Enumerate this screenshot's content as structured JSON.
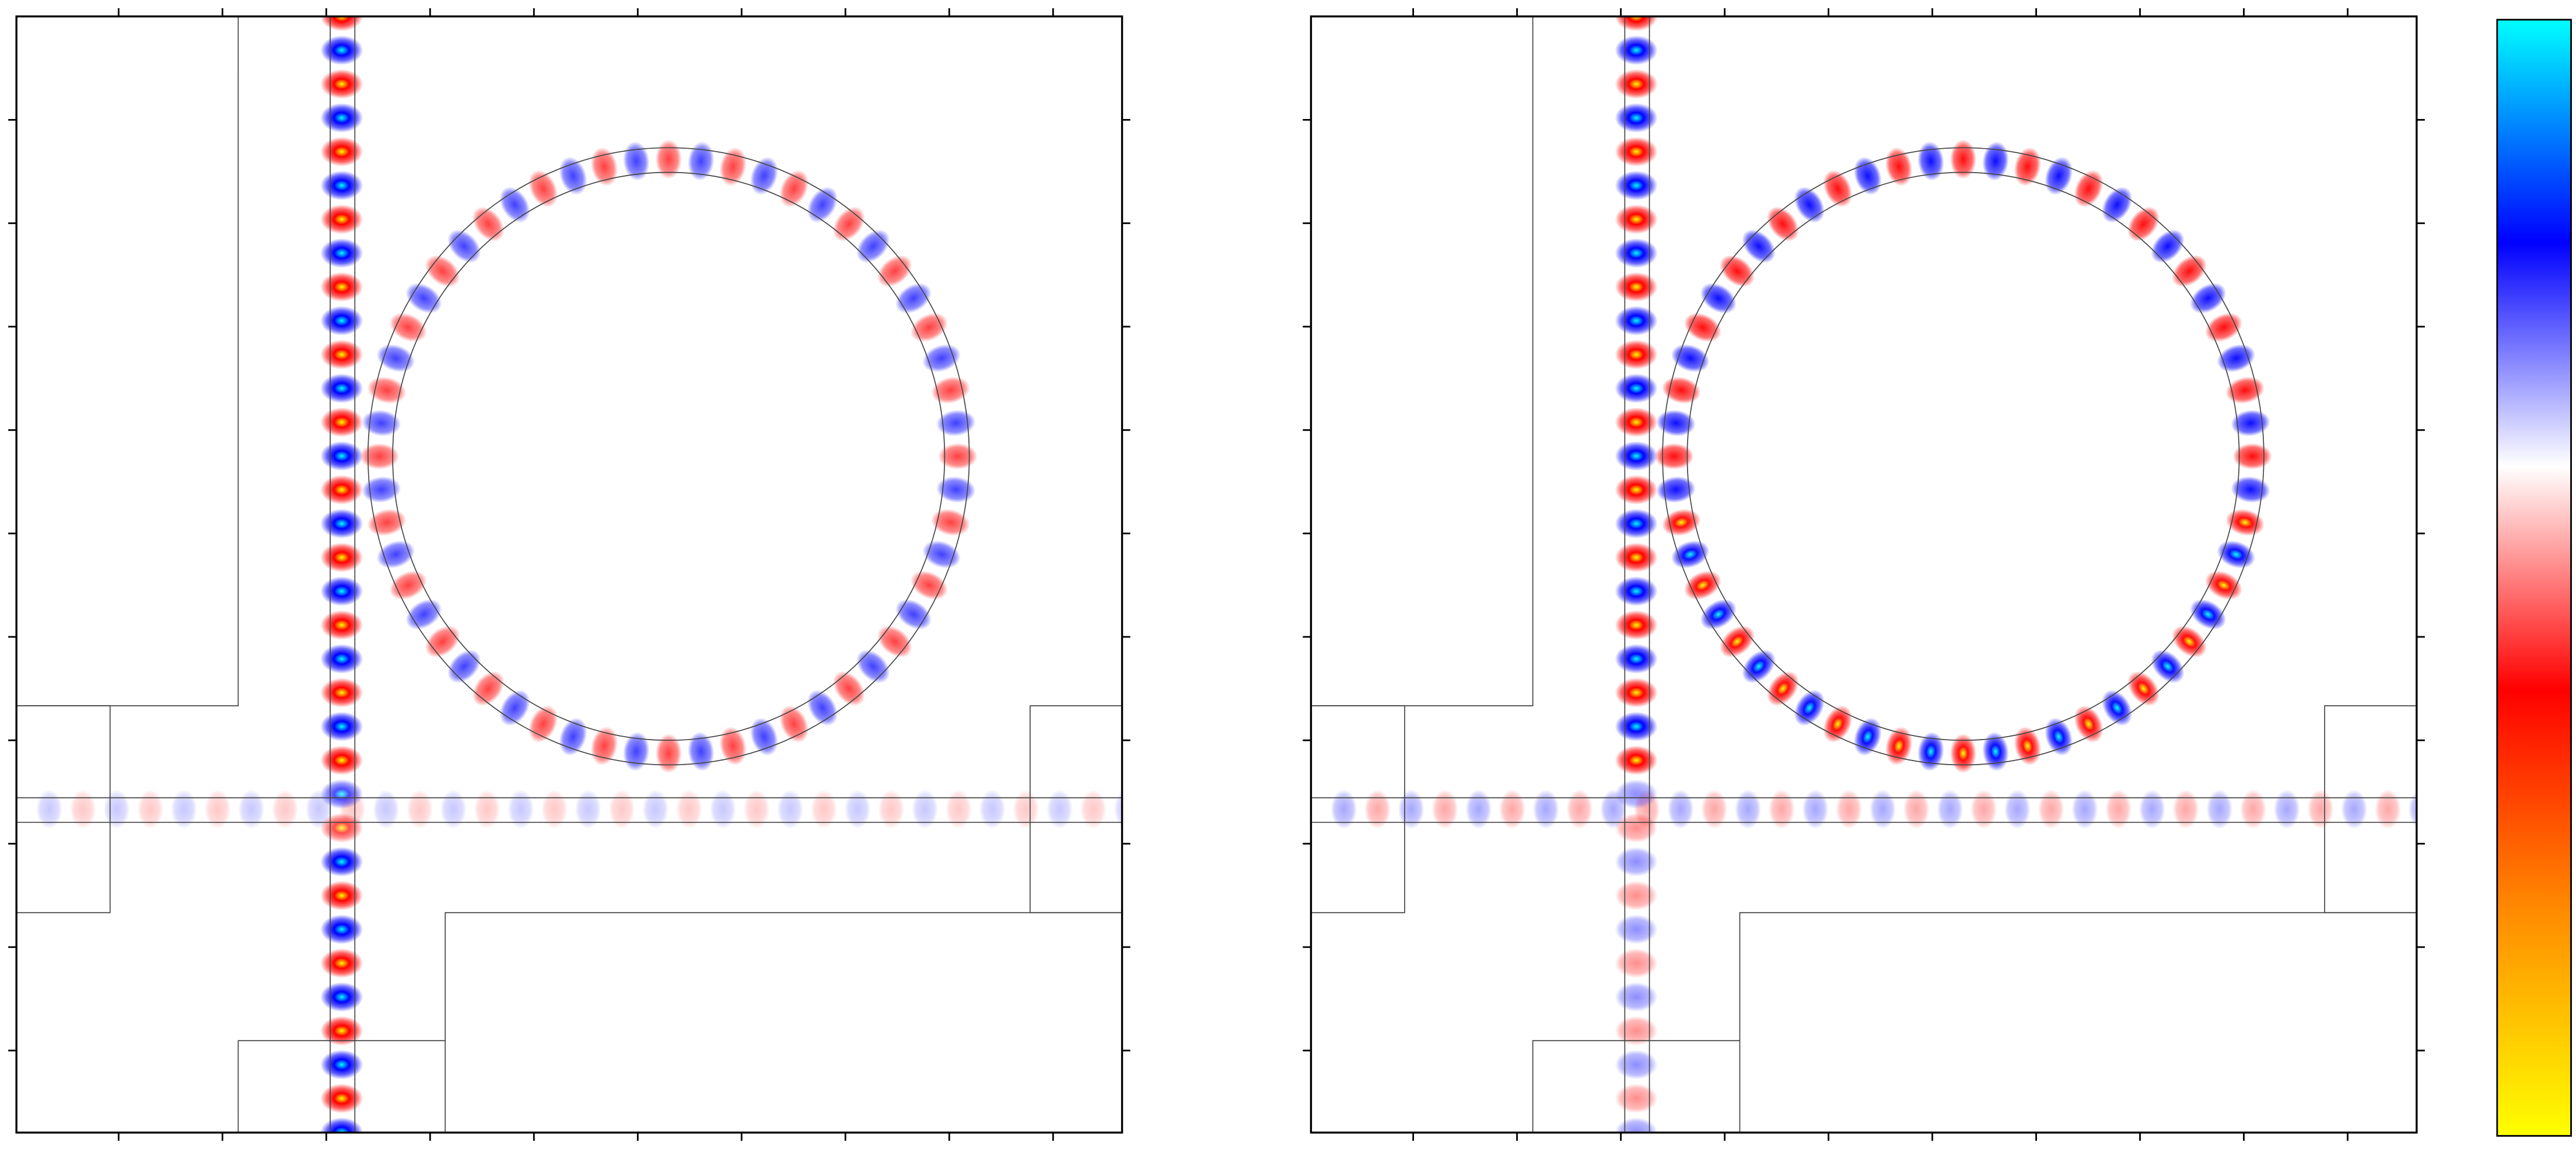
{
  "colorbar": {
    "colors": [
      "#ffff00",
      "#ff8c00",
      "#ff0000",
      "#ffffff",
      "#0000ff",
      "#00ffff"
    ]
  }
}
